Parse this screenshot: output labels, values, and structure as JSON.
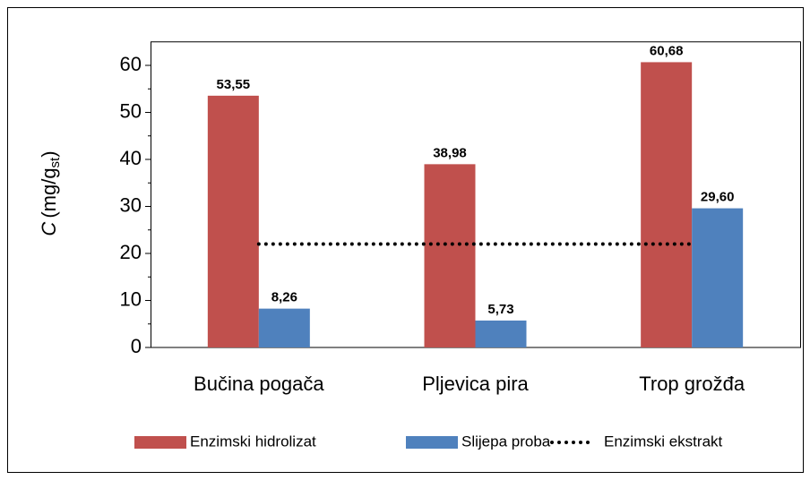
{
  "chart_data": {
    "type": "bar",
    "y_label": {
      "symbol": "C",
      "unit": "(mg/g",
      "subscript": "st",
      "close": ")"
    },
    "categories": [
      "Bučina pogača",
      "Pljevica pira",
      "Trop grožđa"
    ],
    "series": [
      {
        "name": "Enzimski hidrolizat",
        "color": "#c0504d",
        "values": [
          53.55,
          38.98,
          60.68
        ],
        "value_labels": [
          "53,55",
          "38,98",
          "60,68"
        ]
      },
      {
        "name": "Slijepa proba",
        "color": "#4f81bd",
        "values": [
          8.26,
          5.73,
          29.6
        ],
        "value_labels": [
          "8,26",
          "5,73",
          "29,60"
        ]
      },
      {
        "name": "Enzimski ekstrakt",
        "type": "line",
        "color": "#000000",
        "values": [
          22,
          22,
          22
        ]
      }
    ],
    "ylim": [
      0,
      65
    ],
    "yticks": [
      0,
      10,
      20,
      30,
      40,
      50,
      60
    ],
    "grid": false,
    "legend": "bottom"
  }
}
